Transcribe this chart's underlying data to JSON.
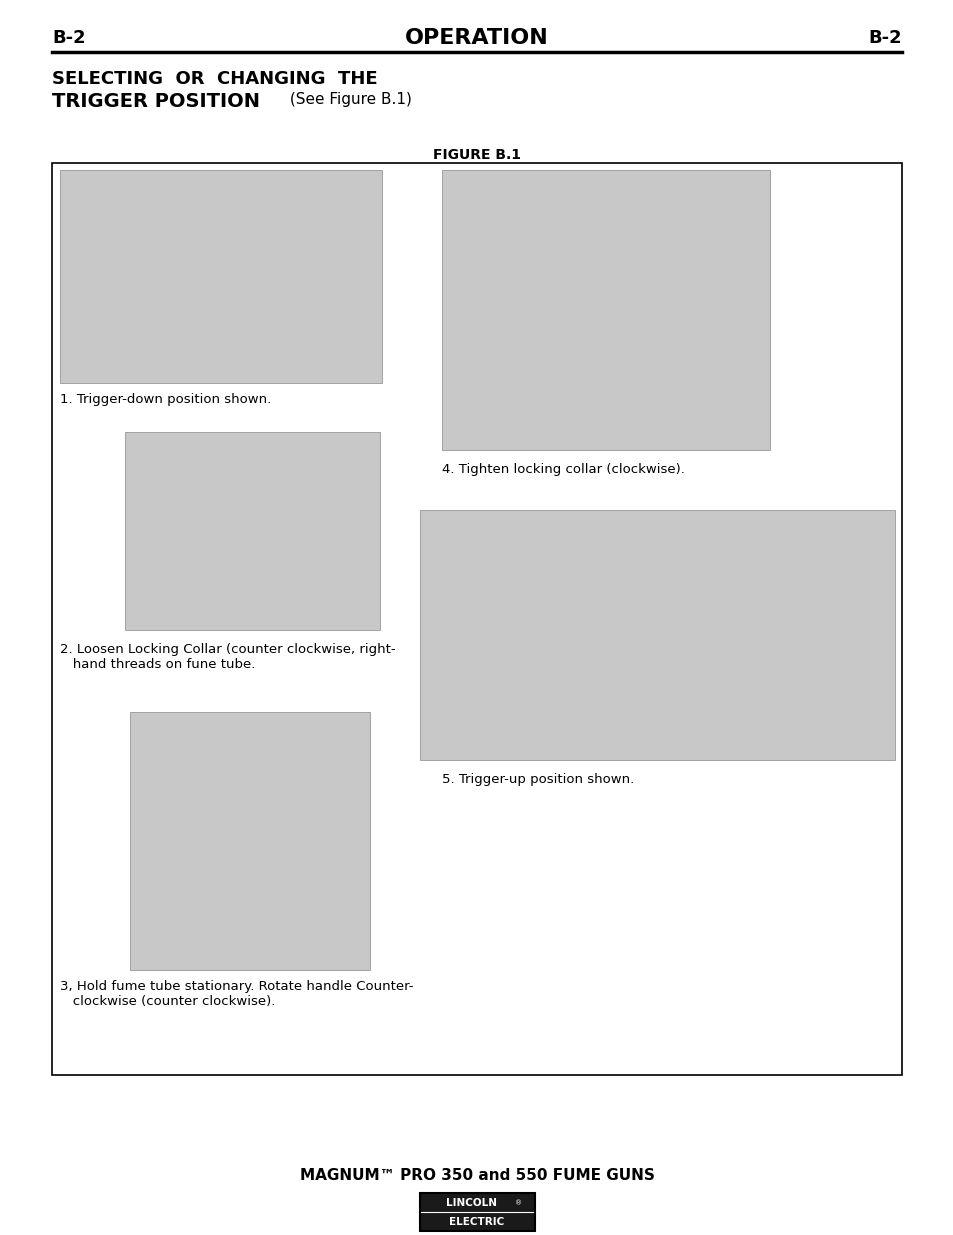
{
  "page_bg": "#ffffff",
  "header_left": "B-2",
  "header_center": "OPERATION",
  "header_right": "B-2",
  "figure_label": "FIGURE B.1",
  "footer_text": "MAGNUM™ PRO 350 and 550 FUME GUNS",
  "title_line1": "SELECTING  OR  CHANGING  THE",
  "title_line2_bold": "TRIGGER POSITION",
  "title_line2_normal": " (See Figure B.1)",
  "caption1": "1. Trigger-down position shown.",
  "caption2a": "2. Loosen Locking Collar (counter clockwise, right-",
  "caption2b": "   hand threads on fune tube.",
  "caption3a": "3, Hold fume tube stationary. Rotate handle Counter-",
  "caption3b": "   clockwise (counter clockwise).",
  "caption4": "4. Tighten locking collar (clockwise).",
  "caption5": "5. Trigger-up position shown.",
  "header_fontsize": 13,
  "title_fontsize": 13,
  "caption_fontsize": 9.5,
  "figure_label_fontsize": 10,
  "footer_fontsize": 11
}
